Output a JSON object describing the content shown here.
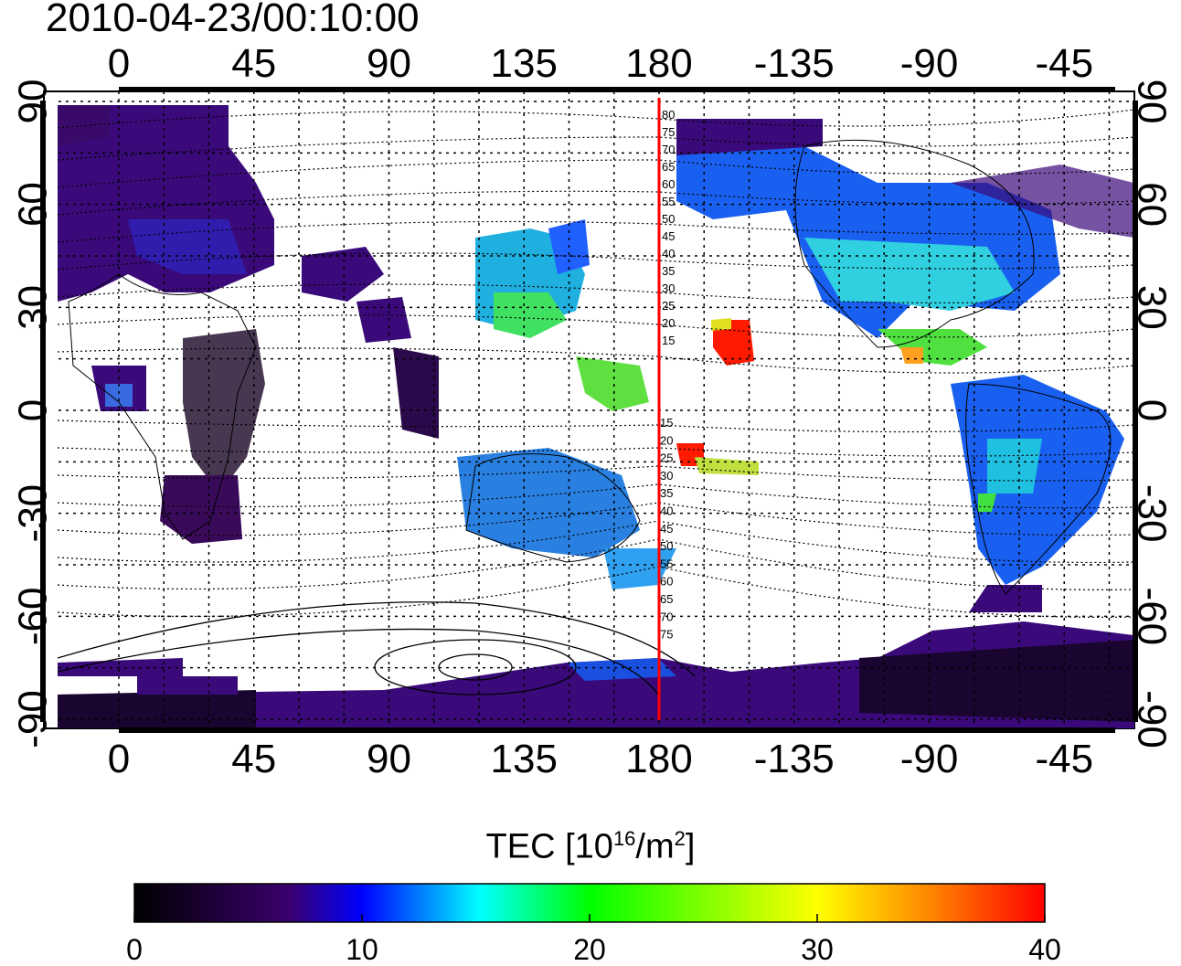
{
  "title": "2010-04-23/00:10:00",
  "map": {
    "x_ticks": [
      "0",
      "45",
      "90",
      "135",
      "180",
      "-135",
      "-90",
      "-45"
    ],
    "y_ticks": [
      "90",
      "60",
      "30",
      "0",
      "-30",
      "-60",
      "-90"
    ],
    "meridian_line_color": "#ff0000",
    "contour_labels_north": [
      "80",
      "75",
      "70",
      "65",
      "60",
      "55",
      "50",
      "45",
      "40",
      "35",
      "30",
      "25",
      "20",
      "15"
    ],
    "contour_labels_south": [
      "15",
      "20",
      "25",
      "30",
      "35",
      "40",
      "45",
      "50",
      "55",
      "60",
      "65",
      "70",
      "75"
    ]
  },
  "colorbar": {
    "label_prefix": "TEC  [10",
    "label_sup1": "16",
    "label_mid": "/m",
    "label_sup2": "2",
    "label_suffix": "]",
    "ticks": [
      "0",
      "10",
      "20",
      "30",
      "40"
    ],
    "colors": [
      "#000000",
      "#3a006e",
      "#0000ff",
      "#00ffff",
      "#00ff00",
      "#ffff00",
      "#ff0000"
    ]
  }
}
